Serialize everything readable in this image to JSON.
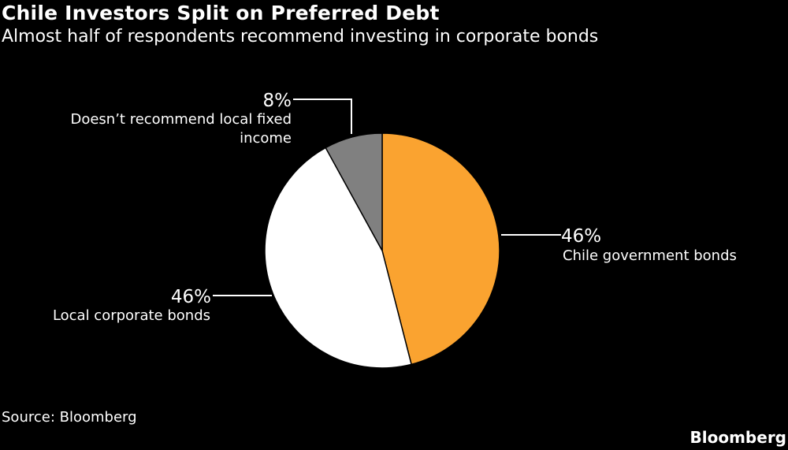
{
  "header": {
    "title": "Chile Investors Split on Preferred Debt",
    "subtitle": "Almost half of respondents recommend investing in corporate bonds"
  },
  "chart_data": {
    "type": "pie",
    "unit": "%",
    "slices": [
      {
        "label": "Chile government bonds",
        "value": 46,
        "color": "#FAA330"
      },
      {
        "label": "Local corporate bonds",
        "value": 46,
        "color": "#FFFFFF"
      },
      {
        "label": "Doesn’t recommend local fixed income",
        "label_lines": [
          "Doesn’t recommend local fixed",
          "income"
        ],
        "value": 8,
        "color": "#808080"
      }
    ]
  },
  "footer": {
    "source": "Source: Bloomberg",
    "brand": "Bloomberg"
  }
}
